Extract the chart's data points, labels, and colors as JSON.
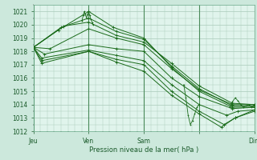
{
  "bg_color": "#cce8dc",
  "plot_bg_color": "#e0f4ec",
  "grid_color": "#aacaba",
  "line_color": "#1a6b1a",
  "xlabel": "Pression niveau de la mer( hPa )",
  "ylim": [
    1012,
    1021.5
  ],
  "yticks": [
    1012,
    1013,
    1014,
    1015,
    1016,
    1017,
    1018,
    1019,
    1020,
    1021
  ],
  "xlim": [
    0.0,
    4.0
  ],
  "xtick_positions": [
    0.0,
    1.0,
    2.0,
    3.0,
    4.0
  ],
  "xtick_labels": [
    "Jeu",
    "Ven",
    "Sam",
    "",
    "Dim"
  ],
  "series": [
    {
      "x": [
        0.0,
        0.45,
        1.0,
        1.45,
        2.0,
        2.5,
        3.0,
        3.6,
        4.0
      ],
      "y": [
        1018.3,
        1019.6,
        1021.0,
        1019.8,
        1019.0,
        1016.8,
        1015.0,
        1013.8,
        1013.8
      ]
    },
    {
      "x": [
        0.0,
        0.5,
        1.0,
        1.5,
        2.0,
        2.5,
        3.0,
        3.6,
        4.0
      ],
      "y": [
        1018.3,
        1019.8,
        1020.5,
        1019.5,
        1018.9,
        1016.9,
        1015.2,
        1013.9,
        1013.9
      ]
    },
    {
      "x": [
        0.0,
        0.55,
        1.0,
        1.5,
        2.0,
        2.5,
        3.0,
        3.6,
        4.0
      ],
      "y": [
        1018.3,
        1019.9,
        1020.2,
        1019.2,
        1018.7,
        1017.1,
        1015.4,
        1014.1,
        1014.0
      ]
    },
    {
      "x": [
        0.0,
        0.3,
        1.0,
        1.5,
        2.0,
        2.5,
        3.0,
        3.6,
        4.0
      ],
      "y": [
        1018.3,
        1018.2,
        1019.7,
        1019.0,
        1018.5,
        1016.7,
        1015.1,
        1014.0,
        1014.0
      ]
    },
    {
      "x": [
        0.0,
        0.2,
        1.0,
        1.5,
        2.0,
        2.5,
        3.0,
        3.6,
        4.0
      ],
      "y": [
        1018.3,
        1017.8,
        1018.5,
        1018.2,
        1018.0,
        1016.0,
        1014.6,
        1013.7,
        1013.8
      ]
    },
    {
      "x": [
        0.0,
        0.15,
        1.0,
        1.5,
        2.0,
        2.5,
        3.0,
        3.5,
        3.7,
        4.0
      ],
      "y": [
        1018.3,
        1017.5,
        1018.1,
        1017.7,
        1017.3,
        1015.5,
        1014.0,
        1013.2,
        1013.5,
        1013.6
      ]
    },
    {
      "x": [
        0.0,
        0.15,
        1.0,
        1.5,
        2.0,
        2.5,
        3.0,
        3.45,
        3.65,
        4.0
      ],
      "y": [
        1018.3,
        1017.3,
        1018.0,
        1017.4,
        1017.0,
        1015.0,
        1013.5,
        1012.5,
        1013.0,
        1013.5
      ]
    },
    {
      "x": [
        0.0,
        0.15,
        1.0,
        1.5,
        2.0,
        2.5,
        3.0,
        3.4,
        3.65,
        4.0
      ],
      "y": [
        1018.3,
        1017.1,
        1018.0,
        1017.2,
        1016.5,
        1014.7,
        1013.3,
        1012.3,
        1013.0,
        1013.6
      ]
    }
  ],
  "peak_wiggle": {
    "x": [
      0.88,
      0.9,
      0.92,
      0.94,
      0.96,
      0.98,
      1.0,
      1.02,
      1.04,
      1.06,
      1.08
    ],
    "y": [
      1020.3,
      1020.7,
      1021.0,
      1020.8,
      1020.5,
      1020.8,
      1021.0,
      1020.7,
      1020.4,
      1020.2,
      1020.0
    ]
  },
  "sam_dip": {
    "x": [
      2.72,
      2.76,
      2.8,
      2.84,
      2.88,
      2.92,
      2.96,
      3.0
    ],
    "y": [
      1015.5,
      1014.5,
      1013.2,
      1012.5,
      1012.8,
      1013.3,
      1013.8,
      1014.0
    ]
  },
  "end_wiggle": {
    "x": [
      3.55,
      3.6,
      3.65,
      3.7,
      3.75,
      3.8,
      3.85,
      3.9,
      3.95,
      4.0
    ],
    "y": [
      1013.8,
      1014.2,
      1014.5,
      1014.3,
      1014.0,
      1013.8,
      1013.9,
      1014.0,
      1013.8,
      1013.9
    ]
  }
}
